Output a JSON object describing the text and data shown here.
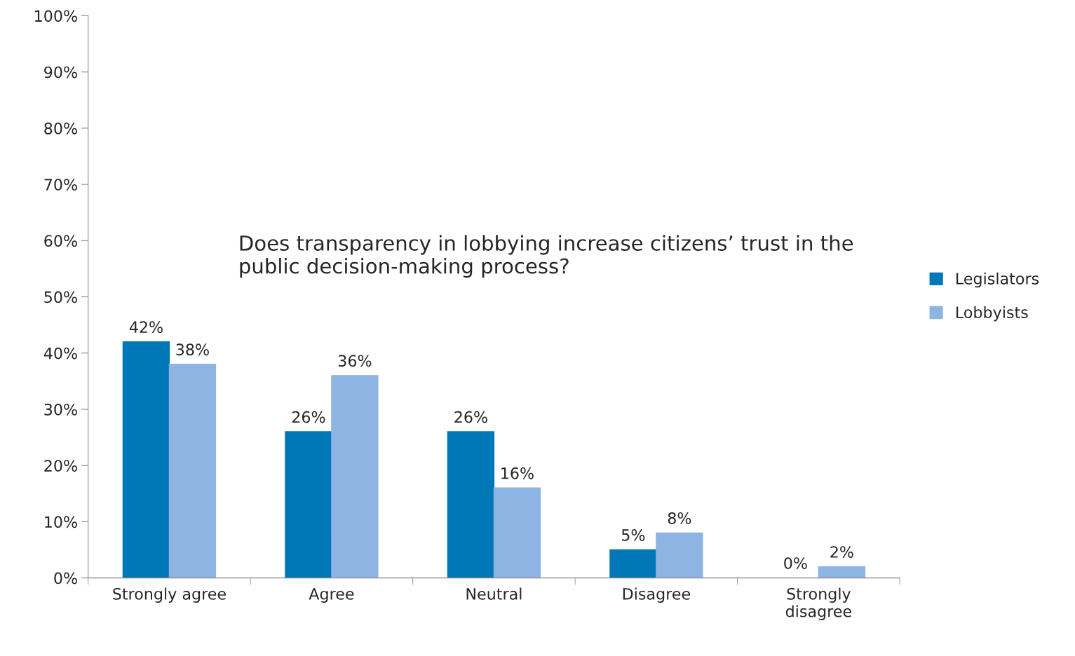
{
  "chart_data": {
    "type": "bar",
    "title": "Does transparency in lobbying increase citizens’ trust in the public decision-making process?",
    "categories": [
      "Strongly agree",
      "Agree",
      "Neutral",
      "Disagree",
      "Strongly disagree"
    ],
    "series": [
      {
        "name": "Legislators",
        "color": "#0077b6",
        "values": [
          42,
          26,
          26,
          5,
          0
        ],
        "value_labels": [
          "42%",
          "26%",
          "26%",
          "5%",
          "0%"
        ]
      },
      {
        "name": "Lobbyists",
        "color": "#8eb4e3",
        "values": [
          38,
          36,
          16,
          8,
          2
        ],
        "value_labels": [
          "38%",
          "36%",
          "16%",
          "8%",
          "2%"
        ]
      }
    ],
    "ylim": [
      0,
      100
    ],
    "yticks": [
      {
        "value": 0,
        "label": "0%"
      },
      {
        "value": 10,
        "label": "10%"
      },
      {
        "value": 20,
        "label": "20%"
      },
      {
        "value": 30,
        "label": "30%"
      },
      {
        "value": 40,
        "label": "40%"
      },
      {
        "value": 50,
        "label": "50%"
      },
      {
        "value": 60,
        "label": "60%"
      },
      {
        "value": 70,
        "label": "70%"
      },
      {
        "value": 80,
        "label": "80%"
      },
      {
        "value": 90,
        "label": "90%"
      },
      {
        "value": 100,
        "label": "100%"
      }
    ],
    "grid": false,
    "legend": "right"
  }
}
